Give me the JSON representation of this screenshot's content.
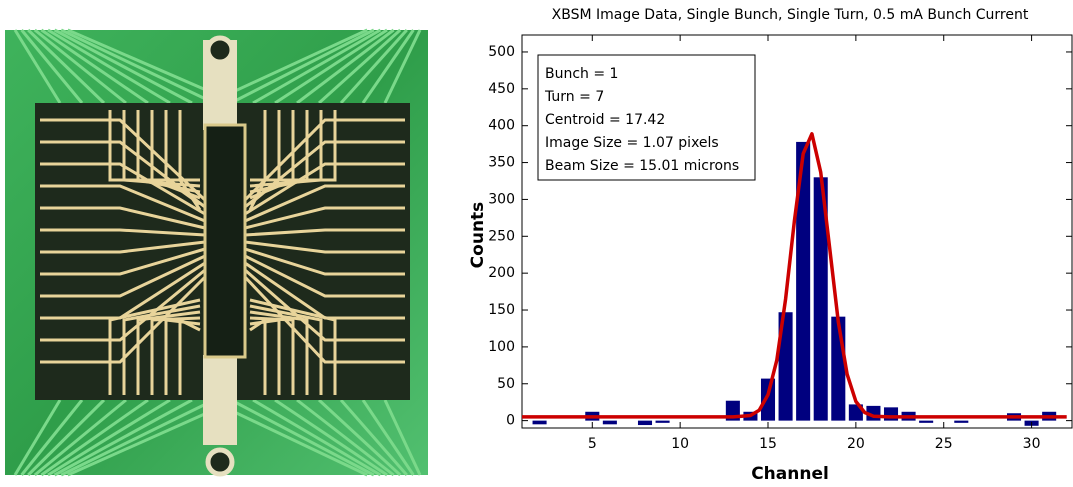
{
  "chart_data": {
    "type": "bar",
    "title": "XBSM Image Data, Single Bunch, Single Turn, 0.5 mA Bunch Current",
    "xlabel": "Channel",
    "ylabel": "Counts",
    "annotation": [
      "Bunch = 1",
      "Turn = 7",
      "Centroid = 17.42",
      "Image Size = 1.07 pixels",
      "Beam Size = 15.01 microns"
    ],
    "xlim": [
      1,
      32.3
    ],
    "ylim": [
      -10,
      523
    ],
    "xticks": [
      5,
      10,
      15,
      20,
      25,
      30
    ],
    "yticks": [
      0,
      50,
      100,
      150,
      200,
      250,
      300,
      350,
      400,
      450,
      500
    ],
    "bars": {
      "color": "#00007f",
      "x": [
        2,
        3,
        4,
        5,
        6,
        7,
        8,
        9,
        10,
        11,
        12,
        13,
        14,
        15,
        16,
        17,
        18,
        19,
        20,
        21,
        22,
        23,
        24,
        25,
        26,
        27,
        28,
        29,
        30,
        31
      ],
      "values": [
        -5,
        0,
        0,
        12,
        -5,
        0,
        -6,
        -3,
        0,
        0,
        0,
        27,
        12,
        57,
        147,
        378,
        330,
        141,
        22,
        20,
        18,
        12,
        -3,
        0,
        -3,
        0,
        0,
        10,
        -7,
        12
      ]
    },
    "fit": {
      "color": "#cc0000",
      "x": [
        1,
        2,
        3,
        4,
        5,
        6,
        7,
        8,
        9,
        10,
        11,
        12,
        13,
        13.5,
        14,
        14.5,
        15,
        15.5,
        16,
        16.5,
        17,
        17.5,
        18,
        18.5,
        19,
        19.5,
        20,
        20.5,
        21,
        22,
        23,
        24,
        25,
        26,
        27,
        28,
        29,
        30,
        31,
        32
      ],
      "values": [
        5,
        5,
        5,
        5,
        5,
        5,
        5,
        5,
        5,
        5,
        5,
        5,
        5,
        6,
        7,
        14,
        35,
        82,
        165,
        271,
        362,
        389,
        337,
        236,
        134,
        63,
        26,
        11,
        6,
        5,
        5,
        5,
        5,
        5,
        5,
        5,
        5,
        5,
        5,
        5
      ]
    }
  }
}
